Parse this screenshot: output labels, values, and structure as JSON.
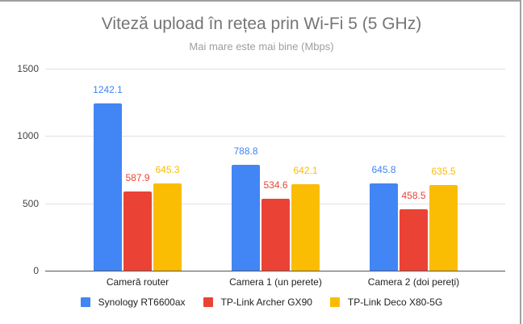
{
  "chart_data": {
    "type": "bar",
    "title": "Viteză upload în rețea prin Wi-Fi 5 (5 GHz)",
    "subtitle": "Mai mare este mai bine (Mbps)",
    "xlabel": "",
    "ylabel": "",
    "ylim": [
      0,
      1500
    ],
    "yticks": [
      "0",
      "500",
      "1000",
      "1500"
    ],
    "grid": true,
    "legend_position": "bottom",
    "categories": [
      "Cameră router",
      "Camera 1 (un perete)",
      "Camera 2 (doi pereți)"
    ],
    "series": [
      {
        "name": "Synology RT6600ax",
        "color": "#4285f4",
        "values": [
          1242.1,
          788.8,
          645.8
        ],
        "labels": [
          "1242.1",
          "788.8",
          "645.8"
        ]
      },
      {
        "name": "TP-Link Archer GX90",
        "color": "#ea4335",
        "values": [
          587.9,
          534.6,
          458.5
        ],
        "labels": [
          "587.9",
          "534.6",
          "458.5"
        ]
      },
      {
        "name": "TP-Link Deco X80-5G",
        "color": "#fbbc04",
        "values": [
          645.3,
          642.1,
          635.5
        ],
        "labels": [
          "645.3",
          "642.1",
          "635.5"
        ]
      }
    ]
  }
}
